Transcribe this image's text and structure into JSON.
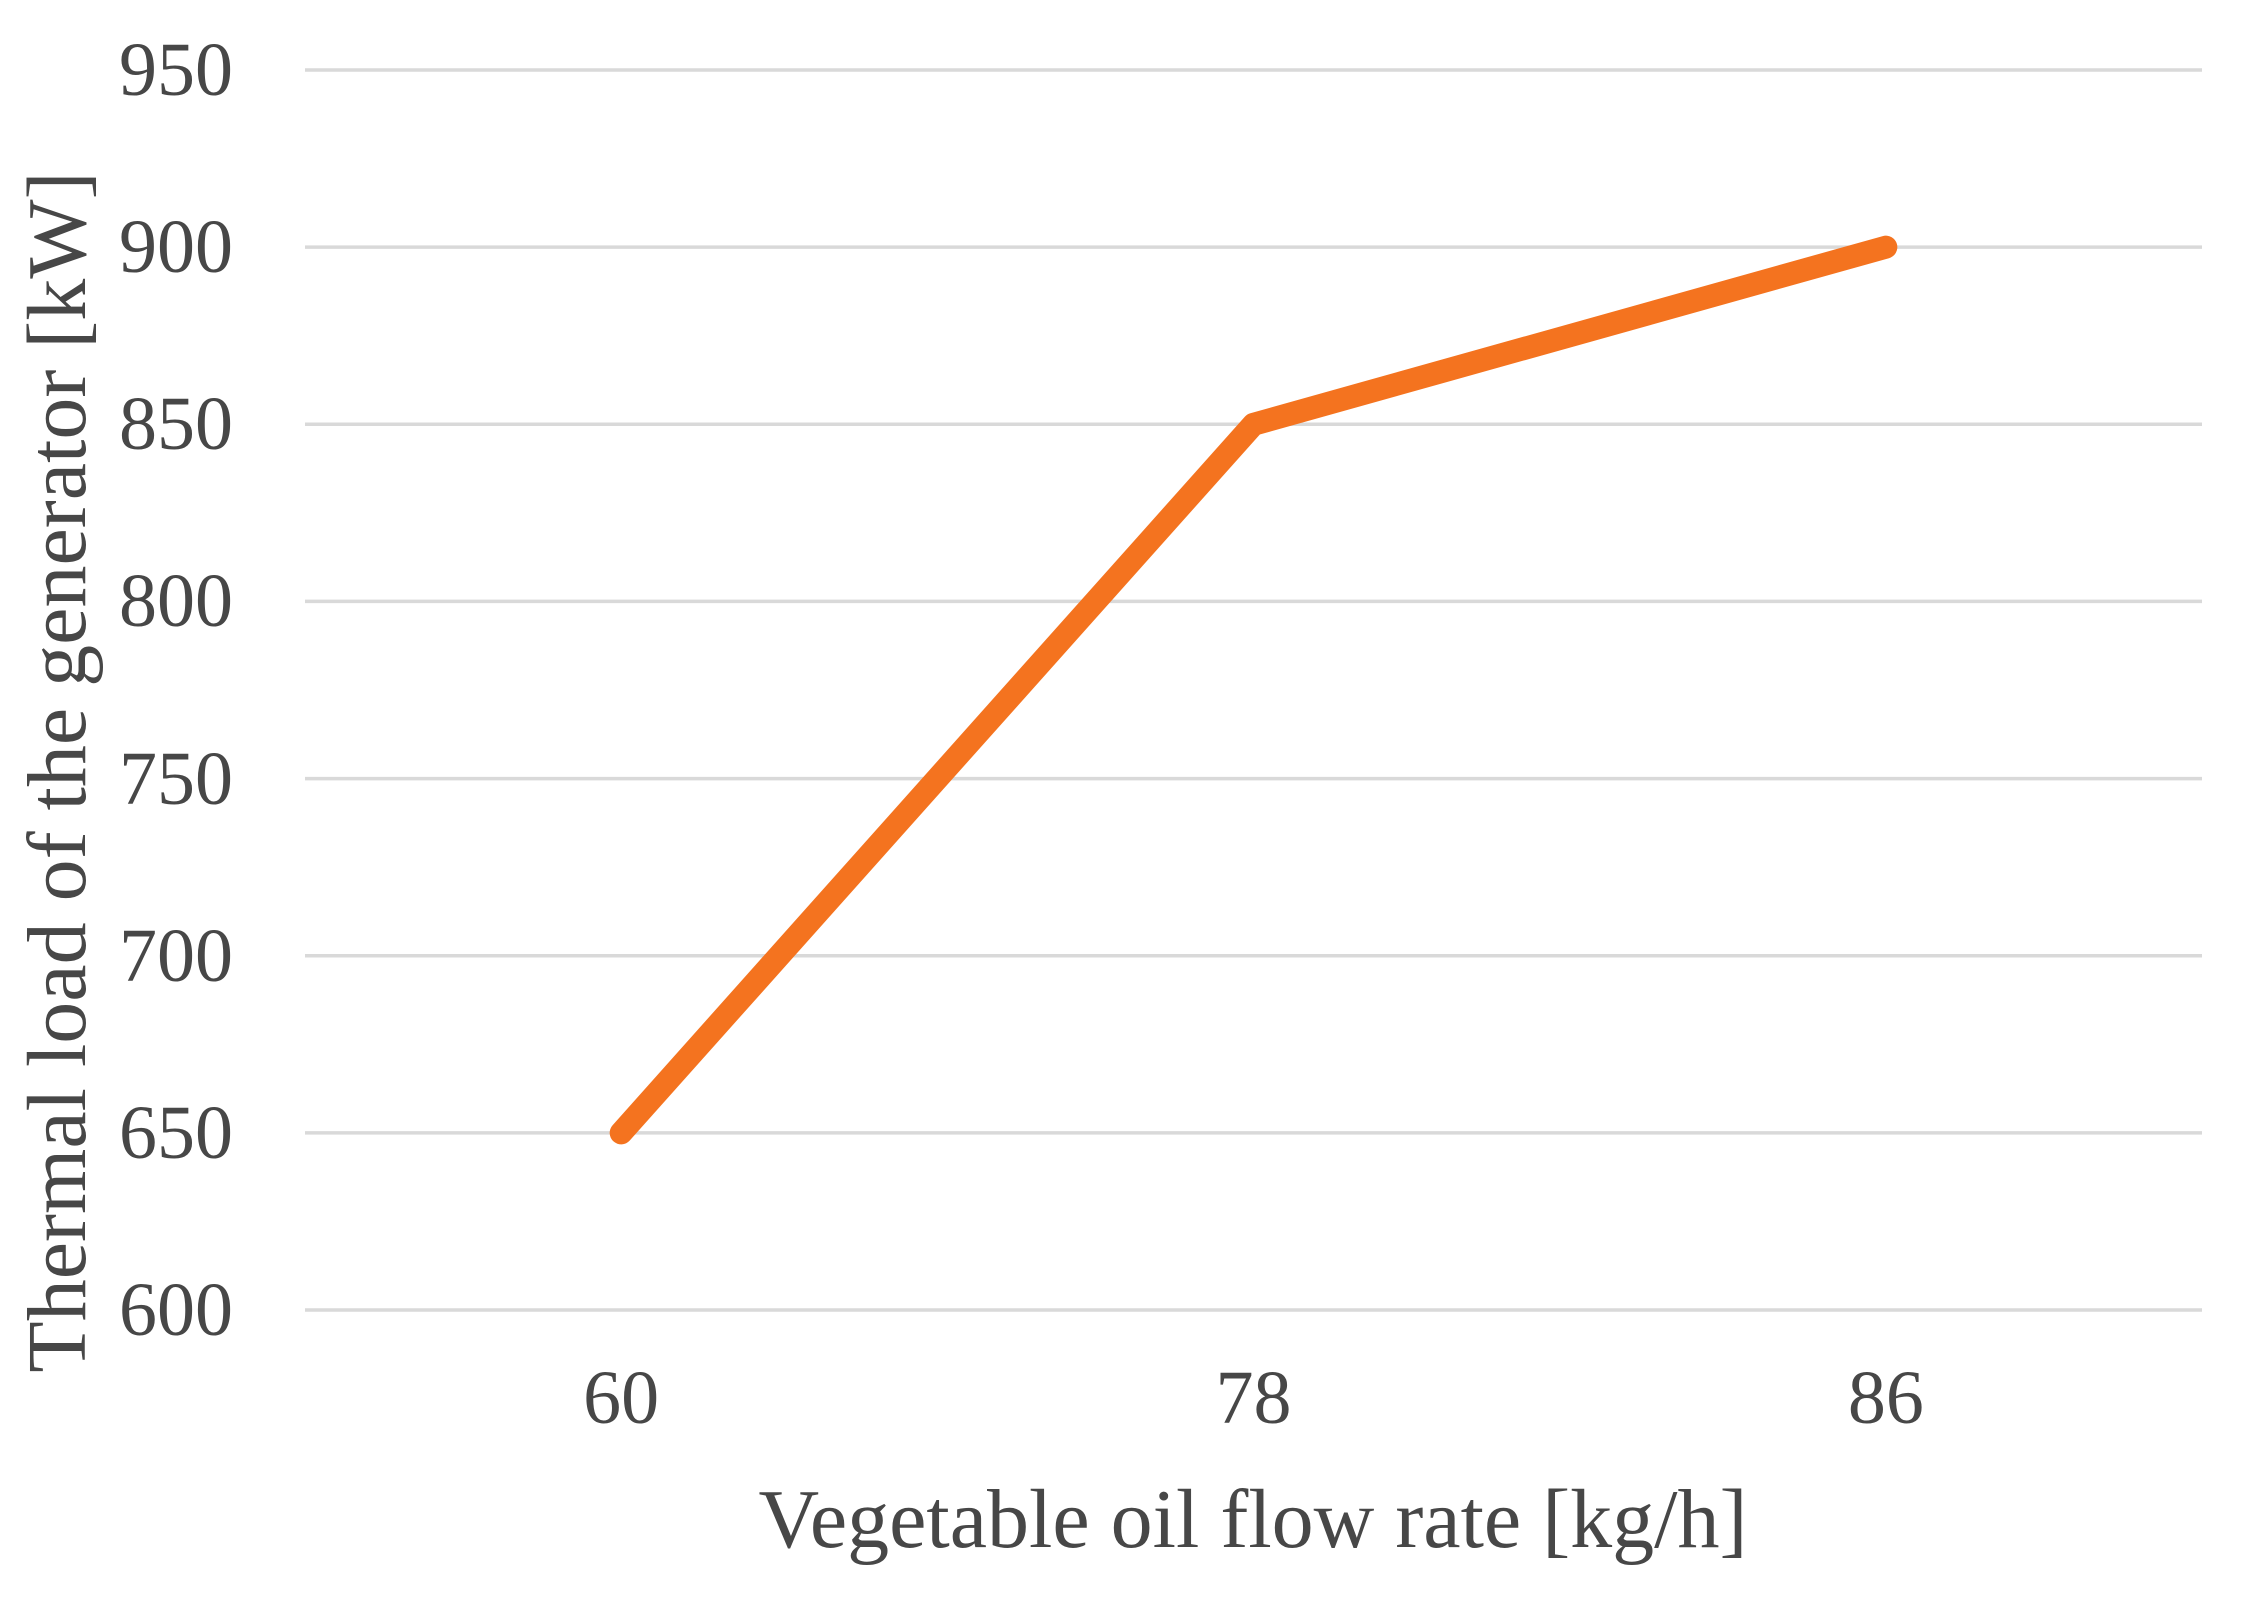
{
  "chart_data": {
    "type": "line",
    "title": "",
    "categories": [
      "60",
      "78",
      "86"
    ],
    "series": [
      {
        "name": "thermal-load-series",
        "values": [
          650,
          850,
          900
        ],
        "color": "#F4731F"
      }
    ],
    "xlabel": "Vegetable oil flow rate [kg/h]",
    "ylabel": "Thermal load of the generator [kW]",
    "ylim": [
      600,
      950
    ],
    "ytick_step": 50,
    "yticks": [
      "600",
      "650",
      "700",
      "750",
      "800",
      "850",
      "900",
      "950"
    ],
    "x_axis_type": "category",
    "grid": "horizontal",
    "legend": "none",
    "colors": {
      "line": "#F4731F",
      "gridline": "#D9D9D9",
      "label_text": "#474747",
      "background": "#FFFFFF"
    }
  }
}
